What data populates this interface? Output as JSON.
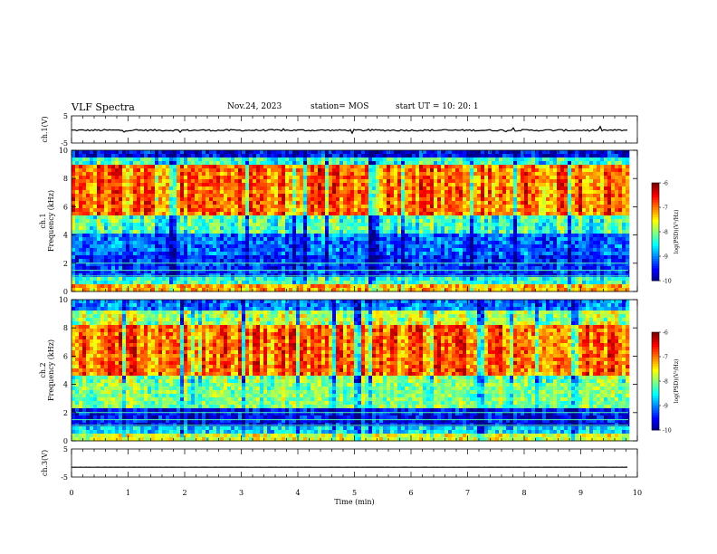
{
  "header": {
    "title": "VLF Spectra",
    "date": "Nov.24, 2023",
    "station": "station= MOS",
    "start_ut": "start UT =   10: 20: 1"
  },
  "chart_data": [
    {
      "panel": "ch1_waveform",
      "type": "line",
      "ylabel": "ch.1(V)",
      "ylim": [
        -5,
        5
      ],
      "yticks": [
        "5",
        "-5"
      ],
      "xlim": [
        0,
        10
      ],
      "values": "flat trace near -0.3 V, small spikes"
    },
    {
      "panel": "ch1_spectrogram",
      "type": "heatmap",
      "ylabel": "ch.1\nFrequency (kHz)",
      "ylim": [
        0,
        10
      ],
      "yticks": [
        "0",
        "2",
        "4",
        "6",
        "8",
        "10"
      ],
      "xlim": [
        0,
        9.85
      ],
      "colorbar": {
        "label": "log(PSD)(V²/Hz)",
        "range": [
          -10,
          -6
        ],
        "ticks": [
          "-6",
          "-7",
          "-8",
          "-9",
          "-10"
        ]
      },
      "bands_khz": [
        {
          "from": 0,
          "to": 0.6,
          "level": -7.2
        },
        {
          "from": 0.6,
          "to": 1.0,
          "level": -8.3
        },
        {
          "from": 1.0,
          "to": 2.5,
          "level": -9.3
        },
        {
          "from": 2.5,
          "to": 4.2,
          "level": -9.1
        },
        {
          "from": 4.2,
          "to": 5.3,
          "level": -8.2
        },
        {
          "from": 5.3,
          "to": 9.0,
          "level": -6.9
        },
        {
          "from": 9.0,
          "to": 9.6,
          "level": -8.3
        },
        {
          "from": 9.6,
          "to": 10,
          "level": -9.5
        }
      ]
    },
    {
      "panel": "ch2_spectrogram",
      "type": "heatmap",
      "ylabel": "ch.2\nFrequency (kHz)",
      "ylim": [
        0,
        10
      ],
      "yticks": [
        "0",
        "2",
        "4",
        "6",
        "8",
        "10"
      ],
      "xlim": [
        0,
        9.85
      ],
      "colorbar": {
        "label": "log(PSD)(V²/Hz)",
        "range": [
          -10,
          -6
        ],
        "ticks": [
          "-6",
          "-7",
          "-8",
          "-9",
          "-10"
        ]
      },
      "bands_khz": [
        {
          "from": 0,
          "to": 0.5,
          "level": -7.6
        },
        {
          "from": 0.5,
          "to": 1.0,
          "level": -8.6
        },
        {
          "from": 1.0,
          "to": 2.4,
          "level": -9.5
        },
        {
          "from": 2.4,
          "to": 4.5,
          "level": -8.0
        },
        {
          "from": 4.5,
          "to": 8.3,
          "level": -6.9
        },
        {
          "from": 8.3,
          "to": 9.2,
          "level": -7.8
        },
        {
          "from": 9.2,
          "to": 10,
          "level": -9.0
        }
      ]
    },
    {
      "panel": "ch3_waveform",
      "type": "line",
      "ylabel": "ch.3(V)",
      "ylim": [
        -5,
        5
      ],
      "yticks": [
        "5",
        "-5"
      ],
      "xlim": [
        0,
        10
      ],
      "values": "flat trace near -1.5 V"
    }
  ],
  "x_axis": {
    "label": "Time (min)",
    "range": [
      0,
      10
    ],
    "ticks": [
      "0",
      "1",
      "2",
      "3",
      "4",
      "5",
      "6",
      "7",
      "8",
      "9",
      "10"
    ]
  }
}
